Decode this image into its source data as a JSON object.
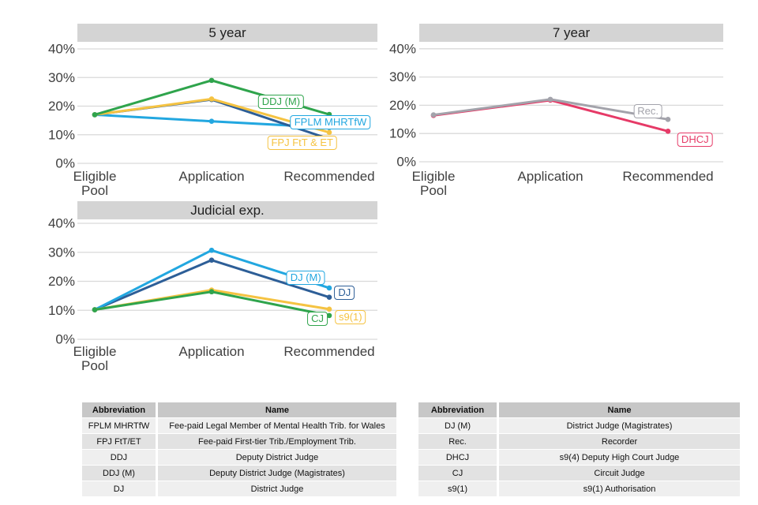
{
  "styles": {
    "panel_header_bg": "#d4d4d4",
    "grid_color": "#d9d9d9",
    "tick_color": "#3f3f3f",
    "table_header_bg": "#c7c7c7",
    "table_row_light": "#efefef",
    "table_row_dark": "#e2e2e2"
  },
  "chart_data": [
    {
      "type": "line",
      "title": "5 year",
      "xlabel": "",
      "ylabel": "",
      "ylim": [
        0,
        43
      ],
      "grid": true,
      "yticks": [
        0,
        10,
        20,
        30,
        40
      ],
      "categories": [
        [
          "Eligible",
          "Pool"
        ],
        [
          "Application"
        ],
        [
          "Recommended"
        ]
      ],
      "series": [
        {
          "name": "FPLM MHRTfW",
          "color": "#22a7e0",
          "values": [
            17,
            14.7,
            12.5
          ],
          "label": {
            "text": "FPLM MHRTfW",
            "x": 2.01,
            "y": 14.4
          }
        },
        {
          "name": "DDJ",
          "color": "#2d5e97",
          "values": [
            17,
            22.3,
            8.5
          ],
          "label": null
        },
        {
          "name": "FPJ FtT & ET",
          "color": "#f5c342",
          "values": [
            17,
            22.5,
            10.8
          ],
          "label": {
            "text": "FPJ FtT & ET",
            "x": 1.77,
            "y": 7.2
          }
        },
        {
          "name": "DDJ (M)",
          "color": "#2fa44c",
          "values": [
            17,
            29,
            17.1
          ],
          "label": {
            "text": "DDJ (M)",
            "x": 1.59,
            "y": 21.4
          }
        }
      ]
    },
    {
      "type": "line",
      "title": "7 year",
      "xlabel": "",
      "ylabel": "",
      "ylim": [
        0,
        43
      ],
      "grid": true,
      "yticks": [
        0,
        10,
        20,
        30,
        40
      ],
      "categories": [
        [
          "Eligible",
          "Pool"
        ],
        [
          "Application"
        ],
        [
          "Recommended"
        ]
      ],
      "series": [
        {
          "name": "DHCJ",
          "color": "#e63a67",
          "values": [
            16.4,
            21.8,
            10.8
          ],
          "label": {
            "text": "DHCJ",
            "x": 2.23,
            "y": 7.8
          }
        },
        {
          "name": "Rec.",
          "color": "#a3a3ab",
          "values": [
            16.6,
            22.1,
            15
          ],
          "label": {
            "text": "Rec.",
            "x": 1.83,
            "y": 17.8
          }
        }
      ]
    },
    {
      "type": "line",
      "title": "Judicial exp.",
      "xlabel": "",
      "ylabel": "",
      "ylim": [
        0,
        43
      ],
      "grid": true,
      "yticks": [
        0,
        10,
        20,
        30,
        40
      ],
      "categories": [
        [
          "Eligible",
          "Pool"
        ],
        [
          "Application"
        ],
        [
          "Recommended"
        ]
      ],
      "series": [
        {
          "name": "DJ",
          "color": "#2d5e97",
          "values": [
            10.2,
            27.3,
            14.5
          ],
          "label": {
            "text": "DJ",
            "x": 2.13,
            "y": 16.1
          }
        },
        {
          "name": "DJ (M)",
          "color": "#22a7e0",
          "values": [
            10.2,
            30.7,
            17.7
          ],
          "label": {
            "text": "DJ (M)",
            "x": 1.8,
            "y": 21.2
          }
        },
        {
          "name": "s9(1)",
          "color": "#f5c342",
          "values": [
            10.2,
            17,
            10.4
          ],
          "label": {
            "text": "s9(1)",
            "x": 2.18,
            "y": 7.6
          }
        },
        {
          "name": "CJ",
          "color": "#2fa44c",
          "values": [
            10.2,
            16.4,
            8.2
          ],
          "label": {
            "text": "CJ",
            "x": 1.9,
            "y": 7.1
          }
        }
      ]
    }
  ],
  "tables": {
    "left": {
      "headers": [
        "Abbreviation",
        "Name"
      ],
      "rows": [
        [
          "FPLM MHRTfW",
          "Fee-paid Legal Member of Mental Health Trib. for Wales"
        ],
        [
          "FPJ FtT/ET",
          "Fee-paid First-tier Trib./Employment Trib."
        ],
        [
          "DDJ",
          "Deputy District Judge"
        ],
        [
          "DDJ (M)",
          "Deputy District Judge (Magistrates)"
        ],
        [
          "DJ",
          "District Judge"
        ]
      ]
    },
    "right": {
      "headers": [
        "Abbreviation",
        "Name"
      ],
      "rows": [
        [
          "DJ (M)",
          "District Judge (Magistrates)"
        ],
        [
          "Rec.",
          "Recorder"
        ],
        [
          "DHCJ",
          "s9(4) Deputy High Court Judge"
        ],
        [
          "CJ",
          "Circuit Judge"
        ],
        [
          "s9(1)",
          "s9(1) Authorisation"
        ]
      ]
    }
  }
}
